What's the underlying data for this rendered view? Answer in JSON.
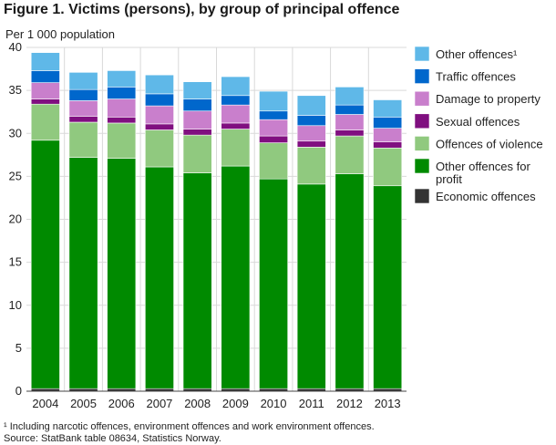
{
  "header": {
    "title": "Figure 1. Victims (persons), by group of principal offence",
    "unit": "Per 1 000 population"
  },
  "footer": {
    "note": "¹ Including narcotic offences, environment offences and work environment offences.",
    "source": "Source: StatBank table 08634, Statistics Norway."
  },
  "chart_data": {
    "type": "bar",
    "stacked": true,
    "title": "Figure 1. Victims (persons), by group of principal offence",
    "ylabel": "Per 1 000 population",
    "xlabel": "",
    "ylim": [
      0,
      40
    ],
    "yticks": [
      0,
      5,
      10,
      15,
      20,
      25,
      30,
      35,
      40
    ],
    "grid": true,
    "legend_position": "right",
    "categories": [
      "2004",
      "2005",
      "2006",
      "2007",
      "2008",
      "2009",
      "2010",
      "2011",
      "2012",
      "2013"
    ],
    "series": [
      {
        "name": "Economic offences",
        "color": "#333333",
        "values": [
          0.3,
          0.3,
          0.3,
          0.3,
          0.3,
          0.3,
          0.3,
          0.3,
          0.3,
          0.3
        ]
      },
      {
        "name": "Other offences for profit",
        "color": "#008a00",
        "values": [
          28.9,
          26.9,
          26.8,
          25.8,
          25.1,
          25.9,
          24.4,
          23.8,
          25.0,
          23.6
        ]
      },
      {
        "name": "Offences of violence",
        "color": "#90c97f",
        "values": [
          4.2,
          4.1,
          4.1,
          4.3,
          4.4,
          4.3,
          4.2,
          4.3,
          4.4,
          4.4
        ]
      },
      {
        "name": "Sexual offences",
        "color": "#800f80",
        "values": [
          0.6,
          0.7,
          0.7,
          0.7,
          0.7,
          0.7,
          0.8,
          0.7,
          0.7,
          0.7
        ]
      },
      {
        "name": "Damage to property",
        "color": "#c97fcc",
        "values": [
          1.9,
          1.8,
          2.1,
          2.1,
          2.1,
          2.1,
          1.9,
          1.8,
          1.8,
          1.6
        ]
      },
      {
        "name": "Traffic offences",
        "color": "#0067cc",
        "values": [
          1.4,
          1.3,
          1.4,
          1.4,
          1.4,
          1.1,
          1.0,
          1.2,
          1.1,
          1.3
        ]
      },
      {
        "name": "Other offences¹",
        "color": "#5fb8e8",
        "values": [
          2.1,
          2.0,
          1.9,
          2.2,
          2.0,
          2.2,
          2.3,
          2.3,
          2.1,
          2.0
        ]
      }
    ],
    "legend": [
      {
        "label": "Other offences¹",
        "color": "#5fb8e8"
      },
      {
        "label": "Traffic offences",
        "color": "#0067cc"
      },
      {
        "label": "Damage to property",
        "color": "#c97fcc"
      },
      {
        "label": "Sexual offences",
        "color": "#800f80"
      },
      {
        "label": "Offences of violence",
        "color": "#90c97f"
      },
      {
        "label": "Other offences for\nprofit",
        "color": "#008a00"
      },
      {
        "label": "Economic offences",
        "color": "#333333"
      }
    ]
  }
}
